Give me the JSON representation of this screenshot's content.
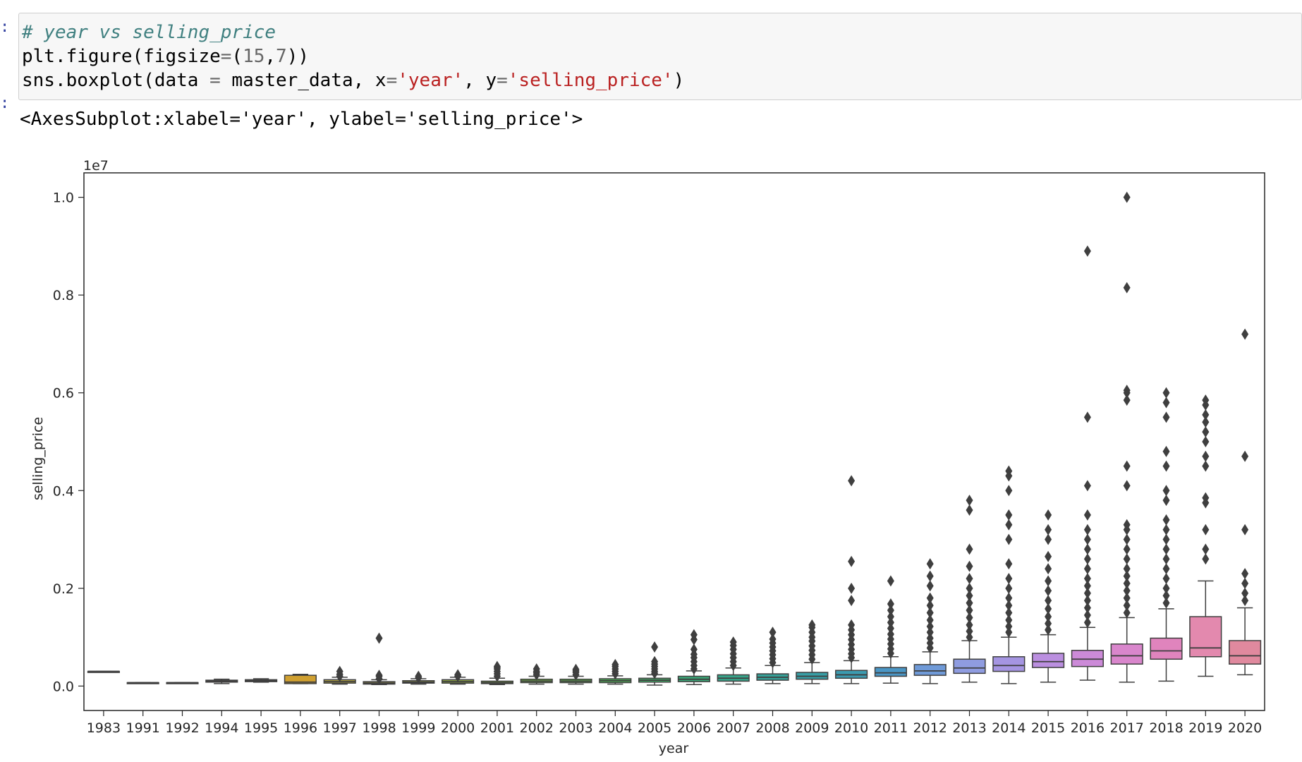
{
  "notebook": {
    "code_lines": [
      [
        {
          "t": "# year vs selling_price",
          "c": "c-comment"
        }
      ],
      [
        {
          "t": "plt.figure(figsize",
          "c": ""
        },
        {
          "t": "=",
          "c": "c-op"
        },
        {
          "t": "(",
          "c": ""
        },
        {
          "t": "15",
          "c": "c-num"
        },
        {
          "t": ",",
          "c": ""
        },
        {
          "t": "7",
          "c": "c-num"
        },
        {
          "t": "))",
          "c": ""
        }
      ],
      [
        {
          "t": "sns.boxplot(data ",
          "c": ""
        },
        {
          "t": "=",
          "c": "c-op"
        },
        {
          "t": " master_data, x",
          "c": ""
        },
        {
          "t": "=",
          "c": "c-op"
        },
        {
          "t": "'year'",
          "c": "c-str"
        },
        {
          "t": ", y",
          "c": ""
        },
        {
          "t": "=",
          "c": "c-op"
        },
        {
          "t": "'selling_price'",
          "c": "c-str"
        },
        {
          "t": ")",
          "c": ""
        }
      ]
    ],
    "output_text": "<AxesSubplot:xlabel='year', ylabel='selling_price'>",
    "prompt_in": ":",
    "prompt_out": ":"
  },
  "chart_data": {
    "type": "box",
    "title": "",
    "xlabel": "year",
    "ylabel": "selling_price",
    "offset_text": "1e7",
    "ylim": [
      -0.05,
      1.05
    ],
    "yticks": [
      0.0,
      0.2,
      0.4,
      0.6,
      0.8,
      1.0
    ],
    "ytick_labels": [
      "0.0",
      "0.2",
      "0.4",
      "0.6",
      "0.8",
      "1.0"
    ],
    "categories": [
      "1983",
      "1991",
      "1992",
      "1994",
      "1995",
      "1996",
      "1997",
      "1998",
      "1999",
      "2000",
      "2001",
      "2002",
      "2003",
      "2004",
      "2005",
      "2006",
      "2007",
      "2008",
      "2009",
      "2010",
      "2011",
      "2012",
      "2013",
      "2014",
      "2015",
      "2016",
      "2017",
      "2018",
      "2019",
      "2020"
    ],
    "colors": [
      "#3a923a",
      "#b5a030",
      "#a6a030",
      "#c8a030",
      "#cfa030",
      "#d0a030",
      "#b5a540",
      "#a8a540",
      "#9ba540",
      "#8fa845",
      "#80aa45",
      "#6ea948",
      "#5ca84d",
      "#4daa55",
      "#42ab64",
      "#3aa877",
      "#37a48a",
      "#36a097",
      "#389ea5",
      "#3c9bb0",
      "#4a96c5",
      "#6f9ad8",
      "#8f9ce0",
      "#a595e2",
      "#bb8fe0",
      "#cc8ad8",
      "#d986cc",
      "#e084bd",
      "#e389ae",
      "#e0899e"
    ],
    "boxes": [
      {
        "whislo": 0.03,
        "q1": 0.03,
        "med": 0.03,
        "q3": 0.03,
        "whishi": 0.03,
        "fliers": []
      },
      {
        "whislo": 0.007,
        "q1": 0.007,
        "med": 0.007,
        "q3": 0.007,
        "whishi": 0.007,
        "fliers": []
      },
      {
        "whislo": 0.007,
        "q1": 0.007,
        "med": 0.007,
        "q3": 0.007,
        "whishi": 0.007,
        "fliers": []
      },
      {
        "whislo": 0.005,
        "q1": 0.008,
        "med": 0.01,
        "q3": 0.012,
        "whishi": 0.014,
        "fliers": []
      },
      {
        "whislo": 0.008,
        "q1": 0.009,
        "med": 0.011,
        "q3": 0.013,
        "whishi": 0.015,
        "fliers": []
      },
      {
        "whislo": 0.005,
        "q1": 0.005,
        "med": 0.008,
        "q3": 0.022,
        "whishi": 0.024,
        "fliers": []
      },
      {
        "whislo": 0.004,
        "q1": 0.006,
        "med": 0.009,
        "q3": 0.013,
        "whishi": 0.018,
        "fliers": [
          0.02,
          0.024,
          0.03
        ]
      },
      {
        "whislo": 0.003,
        "q1": 0.004,
        "med": 0.006,
        "q3": 0.009,
        "whishi": 0.013,
        "fliers": [
          0.015,
          0.02,
          0.022,
          0.098
        ]
      },
      {
        "whislo": 0.004,
        "q1": 0.006,
        "med": 0.008,
        "q3": 0.011,
        "whishi": 0.015,
        "fliers": [
          0.017,
          0.02
        ]
      },
      {
        "whislo": 0.004,
        "q1": 0.006,
        "med": 0.009,
        "q3": 0.013,
        "whishi": 0.018,
        "fliers": [
          0.02,
          0.023
        ]
      },
      {
        "whislo": 0.003,
        "q1": 0.005,
        "med": 0.007,
        "q3": 0.01,
        "whishi": 0.016,
        "fliers": [
          0.02,
          0.025,
          0.03,
          0.035,
          0.038,
          0.04
        ]
      },
      {
        "whislo": 0.004,
        "q1": 0.007,
        "med": 0.01,
        "q3": 0.014,
        "whishi": 0.02,
        "fliers": [
          0.023,
          0.027,
          0.03,
          0.035
        ]
      },
      {
        "whislo": 0.004,
        "q1": 0.007,
        "med": 0.01,
        "q3": 0.014,
        "whishi": 0.02,
        "fliers": [
          0.023,
          0.028,
          0.031,
          0.034
        ]
      },
      {
        "whislo": 0.004,
        "q1": 0.007,
        "med": 0.011,
        "q3": 0.015,
        "whishi": 0.021,
        "fliers": [
          0.025,
          0.03,
          0.035,
          0.04,
          0.044
        ]
      },
      {
        "whislo": 0.002,
        "q1": 0.008,
        "med": 0.012,
        "q3": 0.016,
        "whishi": 0.023,
        "fliers": [
          0.026,
          0.03,
          0.035,
          0.04,
          0.045,
          0.05,
          0.08
        ]
      },
      {
        "whislo": 0.003,
        "q1": 0.009,
        "med": 0.014,
        "q3": 0.02,
        "whishi": 0.031,
        "fliers": [
          0.035,
          0.042,
          0.05,
          0.058,
          0.065,
          0.075,
          0.095,
          0.105
        ]
      },
      {
        "whislo": 0.004,
        "q1": 0.01,
        "med": 0.016,
        "q3": 0.023,
        "whishi": 0.037,
        "fliers": [
          0.042,
          0.05,
          0.058,
          0.066,
          0.075,
          0.083,
          0.09
        ]
      },
      {
        "whislo": 0.005,
        "q1": 0.012,
        "med": 0.018,
        "q3": 0.025,
        "whishi": 0.042,
        "fliers": [
          0.048,
          0.056,
          0.064,
          0.072,
          0.08,
          0.088,
          0.096,
          0.11
        ]
      },
      {
        "whislo": 0.005,
        "q1": 0.014,
        "med": 0.02,
        "q3": 0.028,
        "whishi": 0.048,
        "fliers": [
          0.055,
          0.064,
          0.073,
          0.082,
          0.092,
          0.1,
          0.11,
          0.12,
          0.125
        ]
      },
      {
        "whislo": 0.005,
        "q1": 0.016,
        "med": 0.023,
        "q3": 0.032,
        "whishi": 0.052,
        "fliers": [
          0.058,
          0.066,
          0.075,
          0.085,
          0.095,
          0.105,
          0.115,
          0.125,
          0.175,
          0.2,
          0.255,
          0.42
        ]
      },
      {
        "whislo": 0.006,
        "q1": 0.02,
        "med": 0.027,
        "q3": 0.038,
        "whishi": 0.06,
        "fliers": [
          0.067,
          0.076,
          0.086,
          0.096,
          0.106,
          0.118,
          0.13,
          0.142,
          0.155,
          0.168,
          0.215
        ]
      },
      {
        "whislo": 0.005,
        "q1": 0.022,
        "med": 0.031,
        "q3": 0.044,
        "whishi": 0.07,
        "fliers": [
          0.078,
          0.088,
          0.098,
          0.11,
          0.122,
          0.135,
          0.15,
          0.165,
          0.18,
          0.205,
          0.225,
          0.25
        ]
      },
      {
        "whislo": 0.008,
        "q1": 0.026,
        "med": 0.037,
        "q3": 0.055,
        "whishi": 0.093,
        "fliers": [
          0.1,
          0.112,
          0.125,
          0.14,
          0.155,
          0.17,
          0.185,
          0.2,
          0.22,
          0.245,
          0.28,
          0.36,
          0.38
        ]
      },
      {
        "whislo": 0.005,
        "q1": 0.03,
        "med": 0.042,
        "q3": 0.06,
        "whishi": 0.1,
        "fliers": [
          0.11,
          0.122,
          0.135,
          0.15,
          0.165,
          0.18,
          0.2,
          0.22,
          0.25,
          0.3,
          0.33,
          0.35,
          0.4,
          0.43,
          0.44
        ]
      },
      {
        "whislo": 0.008,
        "q1": 0.038,
        "med": 0.05,
        "q3": 0.067,
        "whishi": 0.105,
        "fliers": [
          0.115,
          0.128,
          0.142,
          0.158,
          0.175,
          0.195,
          0.215,
          0.24,
          0.265,
          0.3,
          0.32,
          0.35
        ]
      },
      {
        "whislo": 0.012,
        "q1": 0.04,
        "med": 0.055,
        "q3": 0.073,
        "whishi": 0.12,
        "fliers": [
          0.13,
          0.145,
          0.16,
          0.175,
          0.19,
          0.205,
          0.22,
          0.24,
          0.26,
          0.28,
          0.3,
          0.32,
          0.35,
          0.41,
          0.55,
          0.89
        ]
      },
      {
        "whislo": 0.008,
        "q1": 0.045,
        "med": 0.062,
        "q3": 0.086,
        "whishi": 0.14,
        "fliers": [
          0.15,
          0.165,
          0.18,
          0.195,
          0.21,
          0.225,
          0.24,
          0.26,
          0.28,
          0.3,
          0.32,
          0.33,
          0.41,
          0.45,
          0.585,
          0.6,
          0.605,
          0.815,
          1.0
        ]
      },
      {
        "whislo": 0.01,
        "q1": 0.055,
        "med": 0.072,
        "q3": 0.098,
        "whishi": 0.158,
        "fliers": [
          0.17,
          0.185,
          0.2,
          0.22,
          0.24,
          0.26,
          0.28,
          0.3,
          0.32,
          0.34,
          0.38,
          0.4,
          0.45,
          0.48,
          0.55,
          0.58,
          0.6
        ]
      },
      {
        "whislo": 0.02,
        "q1": 0.06,
        "med": 0.078,
        "q3": 0.142,
        "whishi": 0.215,
        "fliers": [
          0.26,
          0.28,
          0.32,
          0.375,
          0.385,
          0.45,
          0.47,
          0.5,
          0.52,
          0.54,
          0.555,
          0.575,
          0.585
        ]
      },
      {
        "whislo": 0.023,
        "q1": 0.045,
        "med": 0.062,
        "q3": 0.093,
        "whishi": 0.16,
        "fliers": [
          0.175,
          0.19,
          0.21,
          0.23,
          0.32,
          0.47,
          0.72
        ]
      }
    ],
    "grid": false,
    "legend": "none"
  }
}
